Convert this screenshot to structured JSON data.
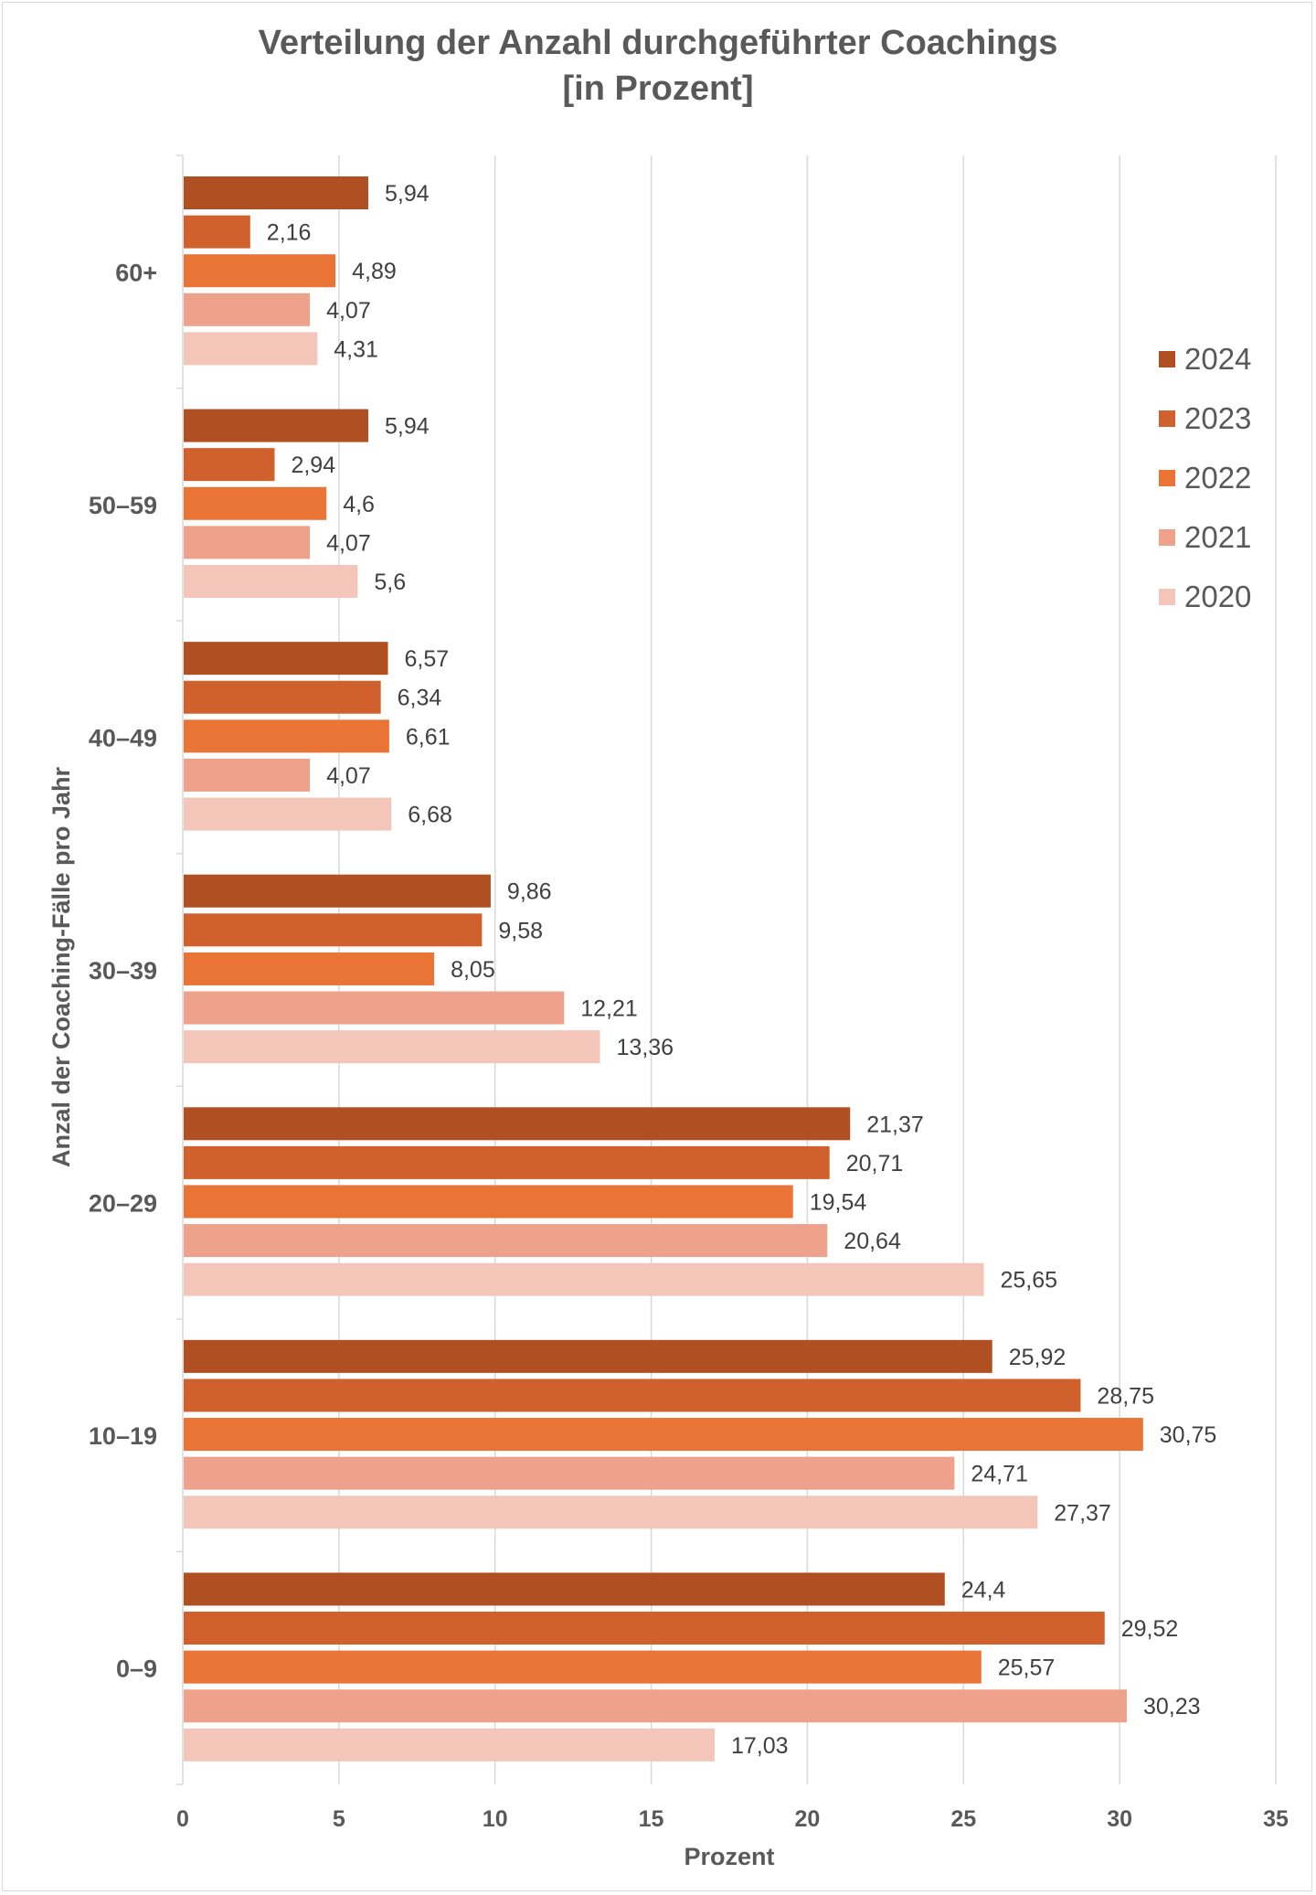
{
  "chart_data": {
    "type": "bar",
    "orientation": "horizontal",
    "title": "Verteilung der Anzahl durchgeführter Coachings",
    "subtitle": "[in Prozent]",
    "xlabel": "Prozent",
    "ylabel": "Anzal der Coaching-Fälle pro Jahr",
    "xlim": [
      0,
      35
    ],
    "xticks": [
      "0",
      "5",
      "10",
      "15",
      "20",
      "25",
      "30",
      "35"
    ],
    "grid": true,
    "legend_position": "right",
    "categories": [
      "60+",
      "50–59",
      "40–49",
      "30–39",
      "20–29",
      "10–19",
      "0–9"
    ],
    "series": [
      {
        "name": "2024",
        "color": "#b04f22",
        "values": [
          5.94,
          5.94,
          6.57,
          9.86,
          21.37,
          25.92,
          24.4
        ],
        "labels": [
          "5,94",
          "5,94",
          "6,57",
          "9,86",
          "21,37",
          "25,92",
          "24,4"
        ]
      },
      {
        "name": "2023",
        "color": "#d0612d",
        "values": [
          2.16,
          2.94,
          6.34,
          9.58,
          20.71,
          28.75,
          29.52
        ],
        "labels": [
          "2,16",
          "2,94",
          "6,34",
          "9,58",
          "20,71",
          "28,75",
          "29,52"
        ]
      },
      {
        "name": "2022",
        "color": "#ea7336",
        "values": [
          4.89,
          4.6,
          6.61,
          8.05,
          19.54,
          30.75,
          25.57
        ],
        "labels": [
          "4,89",
          "4,6",
          "6,61",
          "8,05",
          "19,54",
          "30,75",
          "25,57"
        ]
      },
      {
        "name": "2021",
        "color": "#eea18b",
        "values": [
          4.07,
          4.07,
          4.07,
          12.21,
          20.64,
          24.71,
          30.23
        ],
        "labels": [
          "4,07",
          "4,07",
          "4,07",
          "12,21",
          "20,64",
          "24,71",
          "30,23"
        ]
      },
      {
        "name": "2020",
        "color": "#f3c6b9",
        "values": [
          4.31,
          5.6,
          6.68,
          13.36,
          25.65,
          27.37,
          17.03
        ],
        "labels": [
          "4,31",
          "5,6",
          "6,68",
          "13,36",
          "25,65",
          "27,37",
          "17,03"
        ]
      }
    ]
  }
}
